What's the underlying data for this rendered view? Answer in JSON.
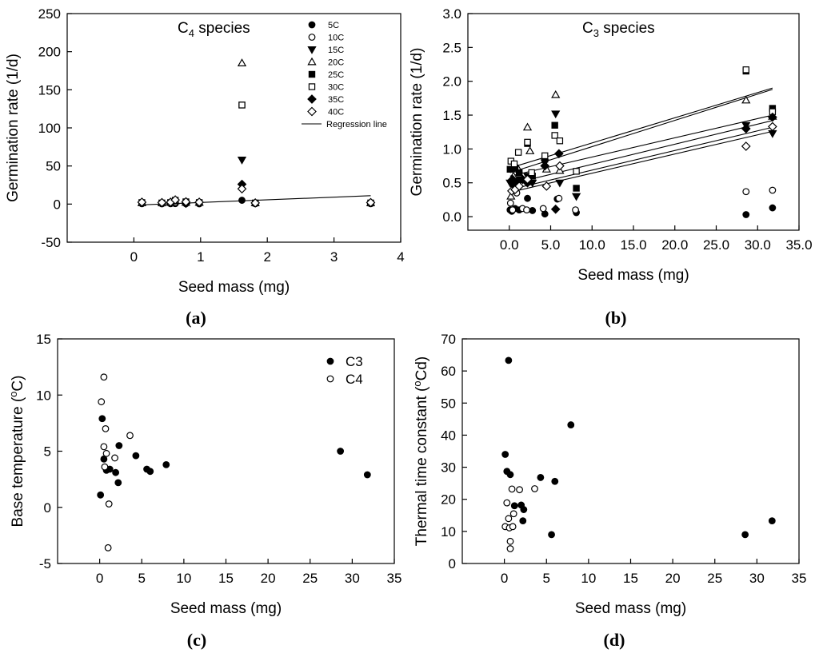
{
  "chart_data": [
    {
      "id": "a",
      "type": "scatter",
      "panel_label": "(a)",
      "title_main": "C",
      "title_sub": "4",
      "title_rest": " species",
      "xlabel": "Seed mass (mg)",
      "ylabel": "Germination rate (1/d)",
      "xlim": [
        -1,
        4
      ],
      "ylim": [
        -50,
        250
      ],
      "xticks": [
        0,
        1,
        2,
        3,
        4
      ],
      "yticks": [
        -50,
        0,
        50,
        100,
        150,
        200,
        250
      ],
      "legend": [
        {
          "label": "5C",
          "marker": "circle-filled"
        },
        {
          "label": "10C",
          "marker": "circle-open"
        },
        {
          "label": "15C",
          "marker": "tri-down-filled"
        },
        {
          "label": "20C",
          "marker": "tri-up-open"
        },
        {
          "label": "25C",
          "marker": "square-filled"
        },
        {
          "label": "30C",
          "marker": "square-open"
        },
        {
          "label": "35C",
          "marker": "diamond-filled"
        },
        {
          "label": "40C",
          "marker": "diamond-open"
        },
        {
          "label": "Regression line",
          "marker": "line"
        }
      ],
      "series": [
        {
          "name": "5C",
          "marker": "circle-filled",
          "points": [
            [
              0.12,
              0.5
            ],
            [
              0.42,
              0.4
            ],
            [
              0.55,
              0.5
            ],
            [
              0.62,
              0.6
            ],
            [
              0.78,
              0.5
            ],
            [
              0.98,
              0.4
            ],
            [
              1.62,
              5
            ],
            [
              1.82,
              0.5
            ],
            [
              3.55,
              0.5
            ]
          ]
        },
        {
          "name": "10C",
          "marker": "circle-open",
          "points": [
            [
              0.12,
              1
            ],
            [
              0.42,
              1
            ],
            [
              0.55,
              1.5
            ],
            [
              0.62,
              2
            ],
            [
              0.78,
              1.5
            ],
            [
              0.98,
              1.5
            ],
            [
              1.82,
              1
            ],
            [
              3.55,
              1
            ]
          ]
        },
        {
          "name": "15C",
          "marker": "tri-down-filled",
          "points": [
            [
              1.62,
              58
            ]
          ]
        },
        {
          "name": "20C",
          "marker": "tri-up-open",
          "points": [
            [
              0.12,
              1.5
            ],
            [
              0.42,
              1.5
            ],
            [
              0.55,
              2
            ],
            [
              0.62,
              4
            ],
            [
              0.78,
              2
            ],
            [
              0.98,
              2
            ],
            [
              1.62,
              185
            ],
            [
              1.82,
              1.5
            ],
            [
              3.55,
              1.5
            ]
          ]
        },
        {
          "name": "25C",
          "marker": "square-filled",
          "points": [
            [
              1.62,
              130
            ]
          ]
        },
        {
          "name": "30C",
          "marker": "square-open",
          "points": [
            [
              0.12,
              2
            ],
            [
              0.42,
              1.5
            ],
            [
              0.55,
              2
            ],
            [
              0.62,
              5
            ],
            [
              0.78,
              3
            ],
            [
              0.98,
              2
            ],
            [
              1.62,
              130
            ],
            [
              1.82,
              1.5
            ],
            [
              3.55,
              1.5
            ]
          ]
        },
        {
          "name": "35C",
          "marker": "diamond-filled",
          "points": [
            [
              0.78,
              1
            ],
            [
              1.62,
              26
            ]
          ]
        },
        {
          "name": "40C",
          "marker": "diamond-open",
          "points": [
            [
              0.12,
              2.5
            ],
            [
              0.42,
              2
            ],
            [
              0.55,
              2.5
            ],
            [
              0.62,
              5.5
            ],
            [
              0.78,
              3
            ],
            [
              0.98,
              2.5
            ],
            [
              1.62,
              20
            ],
            [
              1.82,
              1.5
            ],
            [
              3.55,
              2
            ]
          ]
        }
      ],
      "regression_lines": [
        {
          "x1": 0.12,
          "y1": -1,
          "x2": 3.55,
          "y2": 11
        }
      ]
    },
    {
      "id": "b",
      "type": "scatter",
      "panel_label": "(b)",
      "title_main": "C",
      "title_sub": "3",
      "title_rest": " species",
      "xlabel": "Seed mass (mg)",
      "ylabel": "Germination rate (1/d)",
      "xlim": [
        -5,
        35
      ],
      "ylim": [
        -0.2,
        3.0
      ],
      "xticks": [
        0,
        5,
        10,
        15,
        20,
        25,
        30,
        35
      ],
      "yticks": [
        0.0,
        0.5,
        1.0,
        1.5,
        2.0,
        2.5,
        3.0
      ],
      "tick_format": "1dp",
      "series": [
        {
          "name": "5C",
          "marker": "circle-filled",
          "points": [
            [
              0.1,
              0.1
            ],
            [
              0.3,
              0.08
            ],
            [
              0.7,
              0.12
            ],
            [
              1.2,
              0.1
            ],
            [
              2.2,
              0.27
            ],
            [
              2.8,
              0.09
            ],
            [
              4.3,
              0.04
            ],
            [
              5.8,
              0.26
            ],
            [
              8.1,
              0.06
            ],
            [
              28.6,
              0.03
            ],
            [
              31.8,
              0.13
            ]
          ]
        },
        {
          "name": "10C",
          "marker": "circle-open",
          "points": [
            [
              0.15,
              0.2
            ],
            [
              0.4,
              0.1
            ],
            [
              0.9,
              0.35
            ],
            [
              1.6,
              0.12
            ],
            [
              2.1,
              0.1
            ],
            [
              4.1,
              0.12
            ],
            [
              6.0,
              0.27
            ],
            [
              8.0,
              0.1
            ],
            [
              28.6,
              0.37
            ],
            [
              31.8,
              0.39
            ]
          ]
        },
        {
          "name": "15C",
          "marker": "tri-down-filled",
          "points": [
            [
              0.1,
              0.5
            ],
            [
              0.4,
              0.45
            ],
            [
              0.9,
              0.55
            ],
            [
              2.2,
              0.6
            ],
            [
              2.8,
              0.5
            ],
            [
              4.3,
              0.8
            ],
            [
              5.6,
              1.52
            ],
            [
              6.1,
              0.5
            ],
            [
              8.1,
              0.3
            ],
            [
              28.6,
              1.35
            ],
            [
              31.8,
              1.23
            ]
          ]
        },
        {
          "name": "20C",
          "marker": "tri-up-open",
          "points": [
            [
              0.2,
              0.3
            ],
            [
              0.5,
              0.6
            ],
            [
              1.1,
              0.7
            ],
            [
              2.2,
              1.32
            ],
            [
              2.5,
              0.97
            ],
            [
              4.5,
              0.7
            ],
            [
              5.6,
              1.8
            ],
            [
              6.1,
              0.68
            ],
            [
              28.6,
              1.72
            ],
            [
              31.8,
              1.48
            ]
          ]
        },
        {
          "name": "25C",
          "marker": "square-filled",
          "points": [
            [
              0.1,
              0.7
            ],
            [
              0.7,
              0.72
            ],
            [
              1.2,
              0.65
            ],
            [
              2.2,
              1.08
            ],
            [
              2.8,
              0.6
            ],
            [
              4.3,
              0.85
            ],
            [
              5.5,
              1.35
            ],
            [
              8.1,
              0.42
            ],
            [
              28.6,
              2.15
            ],
            [
              31.8,
              1.6
            ]
          ]
        },
        {
          "name": "30C",
          "marker": "square-open",
          "points": [
            [
              0.2,
              0.82
            ],
            [
              0.6,
              0.78
            ],
            [
              1.1,
              0.95
            ],
            [
              2.2,
              1.1
            ],
            [
              2.7,
              0.65
            ],
            [
              4.3,
              0.9
            ],
            [
              5.5,
              1.2
            ],
            [
              6.1,
              1.12
            ],
            [
              8.1,
              0.67
            ],
            [
              28.6,
              2.17
            ],
            [
              31.8,
              1.55
            ]
          ]
        },
        {
          "name": "35C",
          "marker": "diamond-filled",
          "points": [
            [
              0.4,
              0.55
            ],
            [
              0.9,
              0.5
            ],
            [
              1.6,
              0.55
            ],
            [
              2.2,
              0.5
            ],
            [
              4.3,
              0.75
            ],
            [
              5.6,
              0.11
            ],
            [
              6.0,
              0.93
            ],
            [
              28.6,
              1.3
            ],
            [
              31.8,
              1.47
            ]
          ]
        },
        {
          "name": "40C",
          "marker": "diamond-open",
          "points": [
            [
              0.3,
              0.38
            ],
            [
              0.7,
              0.4
            ],
            [
              1.2,
              0.45
            ],
            [
              2.2,
              0.55
            ],
            [
              4.5,
              0.45
            ],
            [
              6.1,
              0.75
            ],
            [
              28.6,
              1.04
            ],
            [
              31.8,
              1.33
            ]
          ]
        }
      ],
      "regression_lines": [
        {
          "x1": 0.1,
          "y1": 0.72,
          "x2": 31.8,
          "y2": 1.9
        },
        {
          "x1": 0.1,
          "y1": 0.65,
          "x2": 31.8,
          "y2": 1.88
        },
        {
          "x1": 0.1,
          "y1": 0.6,
          "x2": 31.8,
          "y2": 1.5
        },
        {
          "x1": 0.1,
          "y1": 0.48,
          "x2": 31.8,
          "y2": 1.42
        },
        {
          "x1": 0.1,
          "y1": 0.4,
          "x2": 31.8,
          "y2": 1.32
        },
        {
          "x1": 0.1,
          "y1": 0.36,
          "x2": 31.8,
          "y2": 1.26
        }
      ]
    },
    {
      "id": "c",
      "type": "scatter",
      "panel_label": "(c)",
      "xlabel": "Seed mass (mg)",
      "ylabel_main": "Base temperature (",
      "ylabel_sup": "o",
      "ylabel_rest": "C)",
      "xlim": [
        -5,
        35
      ],
      "ylim": [
        -5,
        15
      ],
      "xticks": [
        0,
        5,
        10,
        15,
        20,
        25,
        30,
        35
      ],
      "yticks": [
        -5,
        0,
        5,
        10,
        15
      ],
      "legend": [
        {
          "label": "C3",
          "marker": "circle-filled"
        },
        {
          "label": "C4",
          "marker": "circle-open"
        }
      ],
      "series": [
        {
          "name": "C3",
          "marker": "circle-filled",
          "points": [
            [
              0.1,
              1.1
            ],
            [
              0.3,
              7.9
            ],
            [
              0.5,
              4.3
            ],
            [
              0.8,
              3.3
            ],
            [
              1.2,
              3.4
            ],
            [
              1.9,
              3.1
            ],
            [
              2.2,
              2.2
            ],
            [
              2.3,
              5.5
            ],
            [
              4.3,
              4.6
            ],
            [
              5.6,
              3.4
            ],
            [
              6.0,
              3.2
            ],
            [
              7.9,
              3.8
            ],
            [
              28.6,
              5.0
            ],
            [
              31.8,
              2.9
            ]
          ]
        },
        {
          "name": "C4",
          "marker": "circle-open",
          "points": [
            [
              0.2,
              9.4
            ],
            [
              0.5,
              11.6
            ],
            [
              0.5,
              5.4
            ],
            [
              0.6,
              3.6
            ],
            [
              0.7,
              7.0
            ],
            [
              0.8,
              4.8
            ],
            [
              1.0,
              -3.6
            ],
            [
              1.1,
              0.3
            ],
            [
              1.8,
              4.4
            ],
            [
              3.6,
              6.4
            ]
          ]
        }
      ]
    },
    {
      "id": "d",
      "type": "scatter",
      "panel_label": "(d)",
      "xlabel": "Seed mass (mg)",
      "ylabel_main": "Thermal time constant (",
      "ylabel_sup": "o",
      "ylabel_rest": "Cd)",
      "xlim": [
        -5,
        35
      ],
      "ylim": [
        0,
        70
      ],
      "xticks": [
        0,
        5,
        10,
        15,
        20,
        25,
        30,
        35
      ],
      "yticks": [
        0,
        10,
        20,
        30,
        40,
        50,
        60,
        70
      ],
      "series": [
        {
          "name": "C3",
          "marker": "circle-filled",
          "points": [
            [
              0.1,
              34
            ],
            [
              0.3,
              28.7
            ],
            [
              0.5,
              63.3
            ],
            [
              0.7,
              27.7
            ],
            [
              1.2,
              18.0
            ],
            [
              2.0,
              18.2
            ],
            [
              2.2,
              13.3
            ],
            [
              2.3,
              16.8
            ],
            [
              4.3,
              26.8
            ],
            [
              5.6,
              9.0
            ],
            [
              6.0,
              25.6
            ],
            [
              7.9,
              43.2
            ],
            [
              28.6,
              9.0
            ],
            [
              31.8,
              13.3
            ]
          ]
        },
        {
          "name": "C4",
          "marker": "circle-open",
          "points": [
            [
              0.1,
              11.5
            ],
            [
              0.3,
              18.9
            ],
            [
              0.5,
              14.0
            ],
            [
              0.6,
              11.1
            ],
            [
              0.7,
              6.9
            ],
            [
              0.7,
              4.6
            ],
            [
              0.9,
              23.2
            ],
            [
              1.0,
              11.5
            ],
            [
              1.8,
              23.0
            ],
            [
              3.6,
              23.3
            ],
            [
              1.1,
              15.5
            ]
          ]
        }
      ]
    }
  ]
}
